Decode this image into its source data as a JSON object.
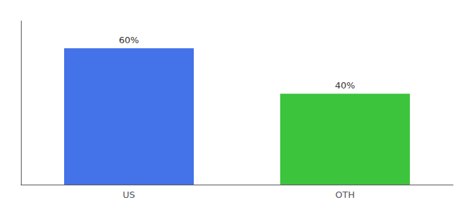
{
  "chart_data": {
    "type": "bar",
    "categories": [
      "US",
      "OTH"
    ],
    "values": [
      60,
      40
    ],
    "value_labels": [
      "60%",
      "40%"
    ],
    "data_labels": true,
    "colors": [
      "#4472e8",
      "#3cc43c"
    ],
    "ylim": [
      0,
      72
    ],
    "yticks": [],
    "tick_labels": "x",
    "grid": false
  }
}
